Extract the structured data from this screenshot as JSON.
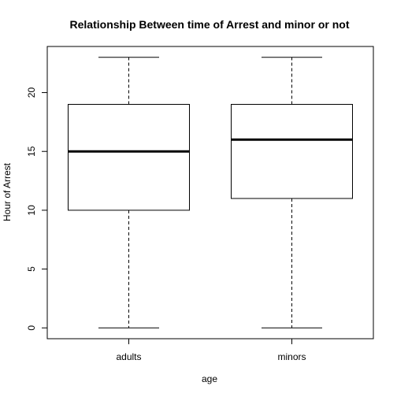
{
  "chart_data": {
    "type": "boxplot",
    "title": "Relationship Between time of Arrest and minor or not",
    "xlabel": "age",
    "ylabel": "Hour of Arrest",
    "categories": [
      "adults",
      "minors"
    ],
    "boxes": [
      {
        "name": "adults",
        "min": 0,
        "q1": 10,
        "median": 15,
        "q3": 19,
        "max": 23
      },
      {
        "name": "minors",
        "min": 0,
        "q1": 11,
        "median": 16,
        "q3": 19,
        "max": 23
      }
    ],
    "ylim": [
      -0.92,
      23.92
    ],
    "yticks": [
      0,
      5,
      10,
      15,
      20
    ],
    "ytick_labels": [
      "0",
      "5",
      "10",
      "15",
      "20"
    ],
    "grid": false,
    "legend": "none"
  }
}
